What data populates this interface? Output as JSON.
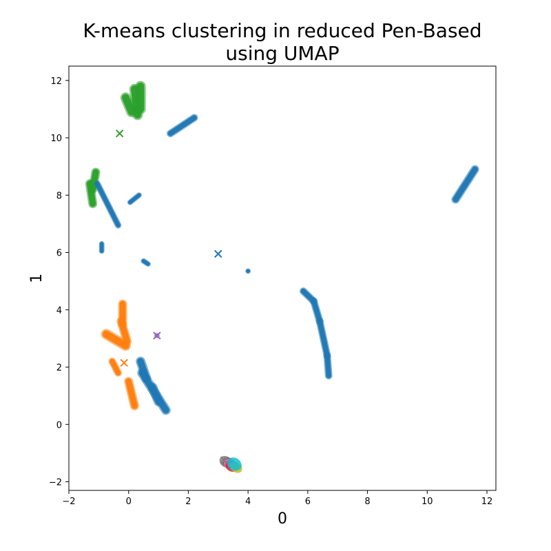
{
  "chart_data": {
    "type": "scatter",
    "title_lines": [
      "K-means clustering in reduced Pen-Based",
      "using UMAP"
    ],
    "xlabel": "0",
    "ylabel": "1",
    "xlim": [
      -2.0,
      12.3
    ],
    "ylim": [
      -2.3,
      12.5
    ],
    "xticks": [
      -2,
      0,
      2,
      4,
      6,
      8,
      10,
      12
    ],
    "yticks": [
      -2,
      0,
      2,
      4,
      6,
      8,
      10,
      12
    ],
    "grid": false,
    "legend": "none",
    "colors": {
      "blue": "#1f77b4",
      "orange": "#ff7f0e",
      "green": "#2ca02c",
      "red": "#d62728",
      "purple": "#9467bd",
      "brown": "#8c564b",
      "pink": "#e377c2",
      "gray": "#7f7f7f",
      "olive": "#bcbd22",
      "cyan": "#17becf"
    },
    "clusters": [
      {
        "color": "green",
        "segments": [
          [
            0.2,
            11.7,
            0.3,
            10.8
          ],
          [
            0.4,
            11.8,
            0.4,
            11.0
          ],
          [
            -0.1,
            11.4,
            0.1,
            10.9
          ]
        ],
        "width": 0.35
      },
      {
        "color": "blue",
        "segments": [
          [
            1.4,
            10.15,
            2.2,
            10.7
          ]
        ],
        "width": 0.25
      },
      {
        "color": "green",
        "segments": [
          [
            -1.3,
            8.4,
            -1.2,
            7.7
          ],
          [
            -1.1,
            8.8,
            -1.2,
            8.2
          ]
        ],
        "width": 0.3
      },
      {
        "color": "blue",
        "segments": [
          [
            -1.05,
            8.4,
            -0.35,
            6.95
          ]
        ],
        "width": 0.22
      },
      {
        "color": "blue",
        "segments": [
          [
            0.05,
            7.75,
            0.35,
            8.0
          ]
        ],
        "width": 0.12
      },
      {
        "color": "blue",
        "segments": [
          [
            -0.9,
            6.3,
            -0.9,
            6.05
          ]
        ],
        "width": 0.14
      },
      {
        "color": "blue",
        "segments": [
          [
            0.5,
            5.7,
            0.65,
            5.6
          ]
        ],
        "width": 0.1
      },
      {
        "color": "blue",
        "segments": [
          [
            4.0,
            5.35,
            4.0,
            5.35
          ]
        ],
        "width": 0.12
      },
      {
        "color": "blue",
        "segments": [
          [
            10.95,
            7.85,
            11.6,
            8.9
          ]
        ],
        "width": 0.28
      },
      {
        "color": "blue",
        "segments": [
          [
            5.85,
            4.65,
            6.2,
            4.3
          ],
          [
            6.2,
            4.3,
            6.4,
            3.6
          ],
          [
            6.4,
            3.6,
            6.65,
            2.4
          ],
          [
            6.65,
            2.4,
            6.7,
            1.7
          ]
        ],
        "width": 0.25
      },
      {
        "color": "orange",
        "segments": [
          [
            -0.2,
            4.2,
            -0.2,
            3.5
          ],
          [
            -0.25,
            3.6,
            -0.05,
            2.9
          ]
        ],
        "width": 0.3
      },
      {
        "color": "orange",
        "segments": [
          [
            -0.75,
            3.15,
            -0.1,
            2.75
          ]
        ],
        "width": 0.35
      },
      {
        "color": "orange",
        "segments": [
          [
            -0.55,
            2.2,
            -0.35,
            1.8
          ]
        ],
        "width": 0.25
      },
      {
        "color": "orange",
        "segments": [
          [
            0.0,
            1.5,
            0.2,
            0.65
          ]
        ],
        "width": 0.3
      },
      {
        "color": "blue",
        "segments": [
          [
            0.4,
            2.2,
            0.6,
            1.6
          ],
          [
            0.45,
            1.8,
            1.25,
            0.5
          ],
          [
            0.8,
            1.3,
            1.0,
            0.8
          ]
        ],
        "width": 0.32
      },
      {
        "color": "purple",
        "segments": [
          [
            0.95,
            3.1,
            0.95,
            3.1
          ]
        ],
        "width": 0.12
      }
    ],
    "bottom_stack": [
      {
        "color": "gray",
        "cx": 3.25,
        "cy": -1.3,
        "rx": 0.22,
        "ry": 0.18
      },
      {
        "color": "brown",
        "cx": 3.35,
        "cy": -1.35,
        "rx": 0.22,
        "ry": 0.18
      },
      {
        "color": "pink",
        "cx": 3.4,
        "cy": -1.4,
        "rx": 0.22,
        "ry": 0.18
      },
      {
        "color": "red",
        "cx": 3.45,
        "cy": -1.45,
        "rx": 0.22,
        "ry": 0.18
      },
      {
        "color": "purple",
        "cx": 3.5,
        "cy": -1.45,
        "rx": 0.2,
        "ry": 0.16
      },
      {
        "color": "olive",
        "cx": 3.6,
        "cy": -1.5,
        "rx": 0.22,
        "ry": 0.16
      },
      {
        "color": "cyan",
        "cx": 3.55,
        "cy": -1.38,
        "rx": 0.25,
        "ry": 0.2
      }
    ],
    "centroids": [
      {
        "color": "green",
        "x": -0.3,
        "y": 10.15,
        "marker": "x"
      },
      {
        "color": "blue",
        "x": 3.0,
        "y": 5.95,
        "marker": "x"
      },
      {
        "color": "orange",
        "x": -0.15,
        "y": 2.15,
        "marker": "x"
      },
      {
        "color": "purple",
        "x": 0.95,
        "y": 3.1,
        "marker": "x"
      },
      {
        "color": "gray",
        "x": 3.2,
        "y": -1.25,
        "marker": "x"
      }
    ]
  }
}
